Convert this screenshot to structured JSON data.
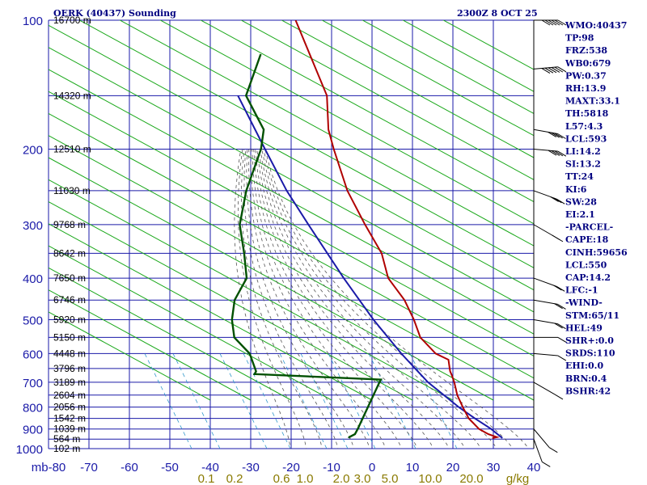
{
  "header": {
    "title": "OERK (40437) Sounding",
    "datetime": "2300Z  8 OCT 25"
  },
  "colors": {
    "grid": "#1a1aa8",
    "dry_adiabat": "#1aa81a",
    "moist_adiabat": "#555555",
    "mixing_ratio": "#3399cc",
    "temperature": "#b00000",
    "dewpoint": "#005000",
    "parcel": "#1a1aa8"
  },
  "axes": {
    "pressure_levels": [
      100,
      200,
      300,
      400,
      500,
      600,
      700,
      800,
      900,
      1000
    ],
    "temperature_ticks": [
      -80,
      -70,
      -60,
      -50,
      -40,
      -30,
      -20,
      -10,
      0,
      10,
      20,
      30,
      40
    ],
    "temperature_tick_labels": [
      "mb-80",
      "-70",
      "-60",
      "-50",
      "-40",
      "-30",
      "-20",
      "-10",
      "0",
      "10",
      "20",
      "30",
      "40"
    ],
    "mixing_ratio_labels": [
      "0.1",
      "0.2",
      "0.6",
      "1.0",
      "2.0",
      "3.0",
      "5.0",
      "10.0",
      "20.0",
      "g/kg"
    ],
    "skew_label_kg": "0"
  },
  "chart_data": {
    "type": "skew-t",
    "title": "OERK (40437) Sounding",
    "heights": [
      {
        "p": 100,
        "label": "16700 m"
      },
      {
        "p": 150,
        "label": "14320 m"
      },
      {
        "p": 200,
        "label": "12510 m"
      },
      {
        "p": 250,
        "label": "11030 m"
      },
      {
        "p": 300,
        "label": "9768 m"
      },
      {
        "p": 350,
        "label": "8642 m"
      },
      {
        "p": 400,
        "label": "7650 m"
      },
      {
        "p": 450,
        "label": "6746 m"
      },
      {
        "p": 500,
        "label": "5920 m"
      },
      {
        "p": 550,
        "label": "5150 m"
      },
      {
        "p": 600,
        "label": "4448 m"
      },
      {
        "p": 650,
        "label": "3796 m"
      },
      {
        "p": 700,
        "label": "3189 m"
      },
      {
        "p": 750,
        "label": "2604 m"
      },
      {
        "p": 800,
        "label": "2056 m"
      },
      {
        "p": 850,
        "label": "1542 m"
      },
      {
        "p": 900,
        "label": "1039 m"
      },
      {
        "p": 950,
        "label": "564 m"
      },
      {
        "p": 1000,
        "label": "102 m"
      }
    ],
    "temperature": [
      {
        "p": 945,
        "t": 27.5
      },
      {
        "p": 940,
        "t": 28.5
      },
      {
        "p": 925,
        "t": 26
      },
      {
        "p": 900,
        "t": 23
      },
      {
        "p": 850,
        "t": 19
      },
      {
        "p": 800,
        "t": 16
      },
      {
        "p": 750,
        "t": 13
      },
      {
        "p": 700,
        "t": 10.5
      },
      {
        "p": 675,
        "t": 9
      },
      {
        "p": 660,
        "t": 8
      },
      {
        "p": 650,
        "t": 7.5
      },
      {
        "p": 620,
        "t": 6
      },
      {
        "p": 600,
        "t": 2
      },
      {
        "p": 550,
        "t": -4
      },
      {
        "p": 500,
        "t": -8
      },
      {
        "p": 450,
        "t": -13
      },
      {
        "p": 400,
        "t": -20
      },
      {
        "p": 350,
        "t": -25
      },
      {
        "p": 300,
        "t": -33
      },
      {
        "p": 250,
        "t": -42
      },
      {
        "p": 200,
        "t": -51
      },
      {
        "p": 180,
        "t": -55
      },
      {
        "p": 150,
        "t": -60
      },
      {
        "p": 100,
        "t": -78
      }
    ],
    "dewpoint": [
      {
        "p": 945,
        "t": -8
      },
      {
        "p": 940,
        "t": -8
      },
      {
        "p": 925,
        "t": -7
      },
      {
        "p": 900,
        "t": -7
      },
      {
        "p": 700,
        "t": -8
      },
      {
        "p": 690,
        "t": -8
      },
      {
        "p": 670,
        "t": -40
      },
      {
        "p": 660,
        "t": -40
      },
      {
        "p": 600,
        "t": -44
      },
      {
        "p": 550,
        "t": -50
      },
      {
        "p": 500,
        "t": -53
      },
      {
        "p": 450,
        "t": -55
      },
      {
        "p": 400,
        "t": -55
      },
      {
        "p": 350,
        "t": -59
      },
      {
        "p": 300,
        "t": -64
      },
      {
        "p": 250,
        "t": -67
      },
      {
        "p": 200,
        "t": -69
      },
      {
        "p": 180,
        "t": -71
      },
      {
        "p": 150,
        "t": -80
      },
      {
        "p": 120,
        "t": -82
      }
    ],
    "parcel": [
      {
        "p": 945,
        "t": 30
      },
      {
        "p": 900,
        "t": 26
      },
      {
        "p": 850,
        "t": 20.5
      },
      {
        "p": 800,
        "t": 15
      },
      {
        "p": 700,
        "t": 4
      },
      {
        "p": 600,
        "t": -6.5
      },
      {
        "p": 500,
        "t": -18
      },
      {
        "p": 400,
        "t": -31
      },
      {
        "p": 300,
        "t": -47
      },
      {
        "p": 250,
        "t": -57
      },
      {
        "p": 200,
        "t": -68
      },
      {
        "p": 150,
        "t": -82
      }
    ],
    "wind_barbs": [
      {
        "p": 100,
        "dir": 270,
        "spd": 65
      },
      {
        "p": 130,
        "dir": 265,
        "spd": 55
      },
      {
        "p": 180,
        "dir": 280,
        "spd": 40
      },
      {
        "p": 200,
        "dir": 275,
        "spd": 35
      },
      {
        "p": 250,
        "dir": 290,
        "spd": 25
      },
      {
        "p": 300,
        "dir": 300,
        "spd": 20
      },
      {
        "p": 400,
        "dir": 290,
        "spd": 15
      },
      {
        "p": 450,
        "dir": 280,
        "spd": 15
      },
      {
        "p": 500,
        "dir": 280,
        "spd": 15
      },
      {
        "p": 550,
        "dir": 270,
        "spd": 10
      },
      {
        "p": 600,
        "dir": 275,
        "spd": 10
      },
      {
        "p": 700,
        "dir": 300,
        "spd": 10
      },
      {
        "p": 900,
        "dir": 320,
        "spd": 5
      },
      {
        "p": 950,
        "dir": 340,
        "spd": 10
      }
    ]
  },
  "indices": [
    "WMO:40437",
    "TP:98",
    "FRZ:538",
    "WB0:679",
    "PW:0.37",
    "RH:13.9",
    "MAXT:33.1",
    "TH:5818",
    "L57:4.3",
    "LCL:593",
    "LI:14.2",
    "SI:13.2",
    "TT:24",
    "KI:6",
    "SW:28",
    "EI:2.1",
    "-PARCEL-",
    "CAPE:18",
    "CINH:59656",
    "LCL:550",
    "CAP:14.2",
    "LFC:-1",
    "-WIND-",
    "STM:65/11",
    "HEL:49",
    "SHR+:0.0",
    "SRDS:110",
    "EHI:0.0",
    "BRN:0.4",
    "BSHR:42"
  ]
}
